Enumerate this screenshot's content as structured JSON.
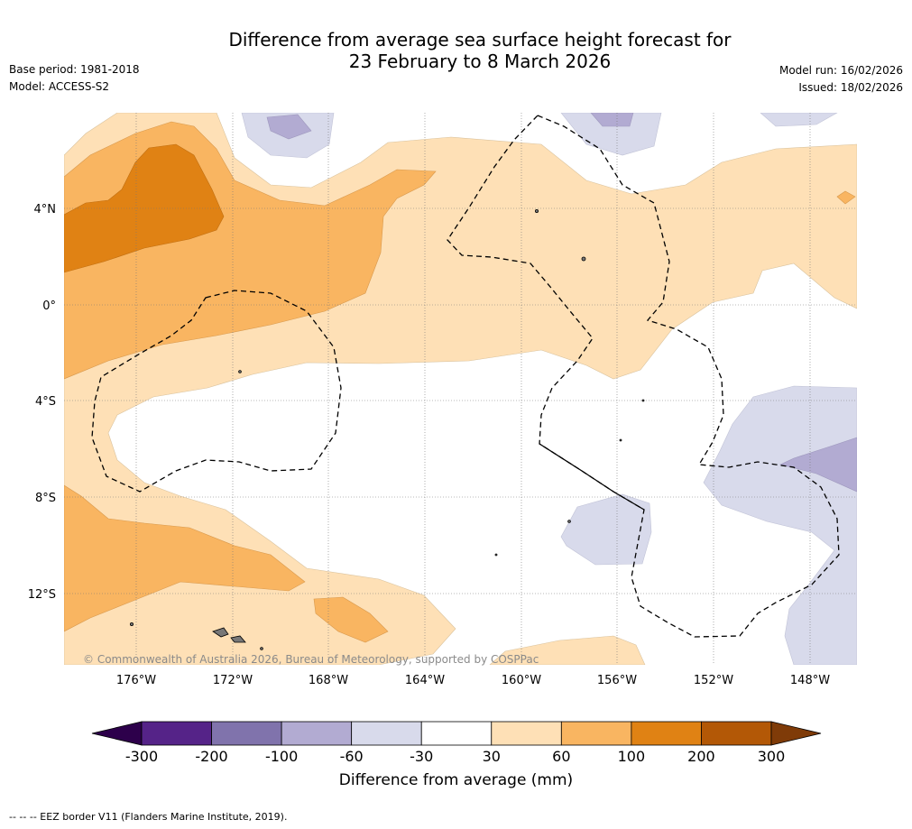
{
  "header": {
    "title_line1": "Difference from average sea surface height forecast for",
    "title_line2": "23 February to 8 March 2026",
    "base_period": "Base period: 1981-2018",
    "model": "Model: ACCESS-S2",
    "model_run": "Model run: 16/02/2026",
    "issued": "Issued: 18/02/2026"
  },
  "map": {
    "longitude_labels": [
      "176°W",
      "172°W",
      "168°W",
      "164°W",
      "160°W",
      "156°W",
      "152°W",
      "148°W"
    ],
    "latitude_labels": [
      "4°N",
      "0°",
      "4°S",
      "8°S",
      "12°S"
    ],
    "copyright": "© Commonwealth of Australia 2026, Bureau of Meteorology, supported by COSPPac"
  },
  "colorbar": {
    "title": "Difference from average (mm)",
    "ticks": [
      "-300",
      "-200",
      "-100",
      "-60",
      "-30",
      "30",
      "60",
      "100",
      "200",
      "300"
    ],
    "colors": [
      "#552388",
      "#8073ac",
      "#b2abd2",
      "#d8daeb",
      "#ffffff",
      "#fee0b6",
      "#f9b561",
      "#e08214",
      "#b35806"
    ],
    "extend_low_color": "#2d004b",
    "extend_high_color": "#7f3b08"
  },
  "footer": {
    "eez_note": "--  --  -- EEZ border V11 (Flanders Marine Institute, 2019)."
  }
}
